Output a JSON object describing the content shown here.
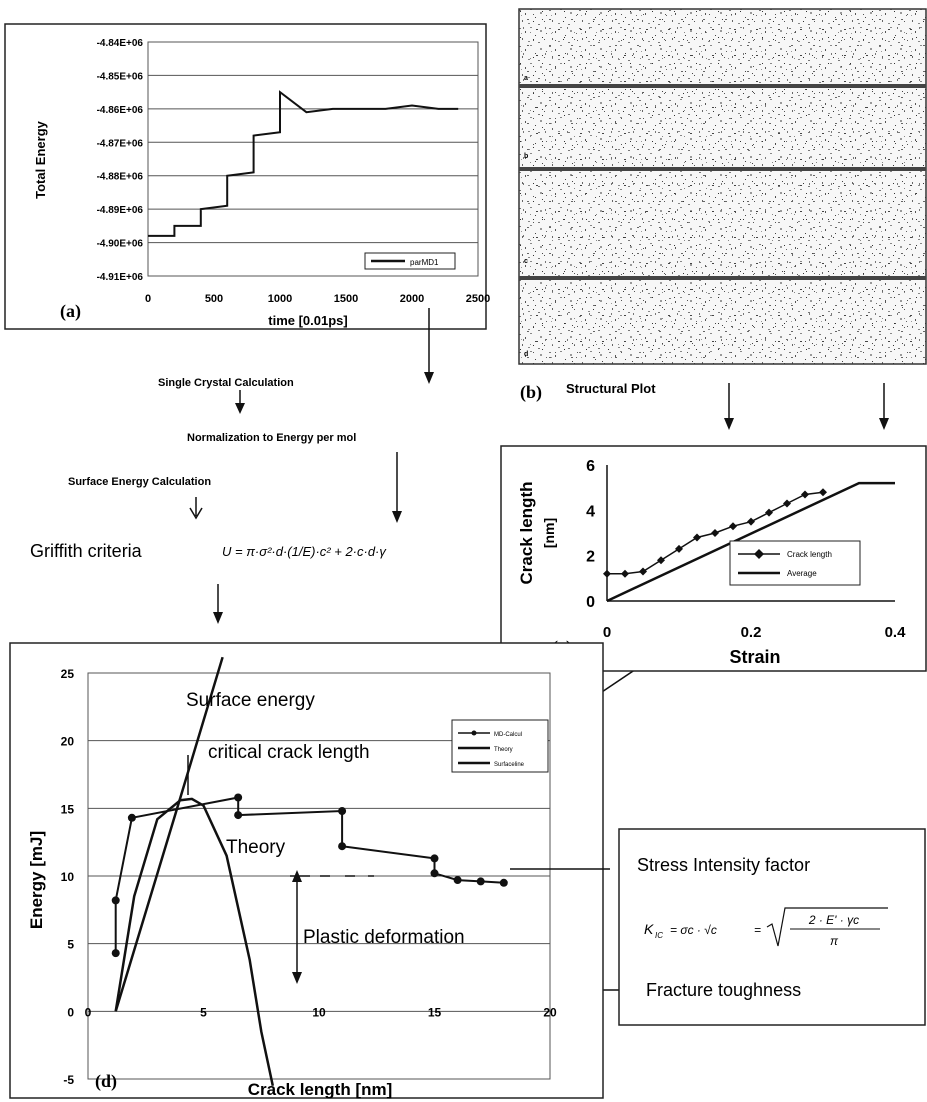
{
  "panel_a": {
    "label": "(a)",
    "xlabel": "time [0.01ps]",
    "ylabel": "Total Energy",
    "legend": "parMD1",
    "x_ticks": [
      "0",
      "500",
      "1000",
      "1500",
      "2000",
      "2500"
    ],
    "y_ticks": [
      "-4.84E+06",
      "-4.85E+06",
      "-4.86E+06",
      "-4.87E+06",
      "-4.88E+06",
      "-4.89E+06",
      "-4.90E+06",
      "-4.91E+06"
    ]
  },
  "panel_b": {
    "label": "(b)",
    "caption": "Structural Plot",
    "strip_labels": [
      "a",
      "b",
      "c",
      "d"
    ]
  },
  "panel_c": {
    "label": "(c)",
    "xlabel": "Strain",
    "ylabel": "Crack length",
    "ylabel_unit": "[nm]",
    "legend": [
      "Crack length",
      "Average"
    ],
    "x_ticks": [
      "0",
      "0.2",
      "0.4"
    ],
    "y_ticks": [
      "6",
      "4",
      "2",
      "0"
    ]
  },
  "panel_d": {
    "label": "(d)",
    "xlabel": "Crack length [nm]",
    "ylabel": "Energy [mJ]",
    "legend": [
      "MD-Calcul",
      "Theory",
      "Surfaceline"
    ],
    "x_ticks": [
      "0",
      "5",
      "10",
      "15",
      "20"
    ],
    "y_ticks": [
      "25",
      "20",
      "15",
      "10",
      "5",
      "0",
      "-5"
    ],
    "annotations": {
      "surface": "Surface energy",
      "critical": "critical crack length",
      "theory": "Theory",
      "plastic": "Plastic deformation"
    }
  },
  "flow": {
    "single_crystal": "Single Crystal Calculation",
    "normalization": "Normalization to Energy per mol",
    "surface_calc": "Surface Energy Calculation",
    "griffith": "Griffith criteria",
    "griffith_formula": "U = π·σ²·d·(1/E)·c² + 2·c·d·γ"
  },
  "stress_box": {
    "title": "Stress Intensity factor",
    "formula_lhs": "K",
    "formula_sub": "IC",
    "formula_mid": "= σc · √c",
    "formula_rhs_num": "2 · E' · γc",
    "formula_rhs_den": "π",
    "toughness": "Fracture toughness"
  },
  "chart_data": [
    {
      "type": "line",
      "panel": "a",
      "x": [
        0,
        200,
        200,
        400,
        400,
        600,
        600,
        800,
        800,
        1000,
        1000,
        1200,
        1400,
        1600,
        1800,
        2000,
        2200,
        2350
      ],
      "y": [
        -4898000,
        -4898000,
        -4895000,
        -4895000,
        -4890000,
        -4889000,
        -4880000,
        -4879000,
        -4868000,
        -4867000,
        -4855000,
        -4861000,
        -4860000,
        -4860000,
        -4860000,
        -4859000,
        -4860000,
        -4860000
      ],
      "xlim": [
        0,
        2500
      ],
      "ylim": [
        -4910000,
        -4840000
      ],
      "xlabel": "time [0.01ps]",
      "ylabel": "Total Energy"
    },
    {
      "type": "line",
      "panel": "c",
      "series": [
        {
          "name": "Crack length",
          "x": [
            0,
            0.025,
            0.05,
            0.075,
            0.1,
            0.125,
            0.15,
            0.175,
            0.2,
            0.225,
            0.25,
            0.275,
            0.3
          ],
          "y": [
            1.2,
            1.2,
            1.3,
            1.8,
            2.3,
            2.8,
            3.0,
            3.3,
            3.5,
            3.9,
            4.3,
            4.7,
            4.8
          ]
        },
        {
          "name": "Average",
          "x": [
            0,
            0.35,
            0.4
          ],
          "y": [
            0,
            5.2,
            5.2
          ]
        }
      ],
      "xlim": [
        0,
        0.4
      ],
      "ylim": [
        0,
        6
      ],
      "xlabel": "Strain",
      "ylabel": "Crack length [nm]"
    },
    {
      "type": "line",
      "panel": "d",
      "series": [
        {
          "name": "MD-Calcul",
          "x": [
            1.2,
            1.2,
            1.9,
            6.5,
            6.5,
            11.0,
            11.0,
            15.0,
            15.0,
            16.0,
            17.0,
            18.0
          ],
          "y": [
            4.3,
            8.2,
            14.3,
            15.8,
            14.5,
            14.8,
            12.2,
            11.3,
            10.2,
            9.7,
            9.6,
            9.5
          ]
        },
        {
          "name": "Theory",
          "x": [
            1.2,
            2,
            3,
            4,
            4.5,
            5,
            6,
            7,
            7.5,
            8
          ],
          "y": [
            0,
            8.5,
            14.2,
            15.6,
            15.7,
            15.2,
            11.5,
            3.8,
            -1.5,
            -5.5
          ]
        },
        {
          "name": "Surfaceline",
          "x": [
            1.2,
            4,
            6.5
          ],
          "y": [
            0,
            15.8,
            30
          ]
        }
      ],
      "xlim": [
        0,
        20
      ],
      "ylim": [
        -5,
        25
      ],
      "xlabel": "Crack length [nm]",
      "ylabel": "Energy [mJ]"
    }
  ]
}
